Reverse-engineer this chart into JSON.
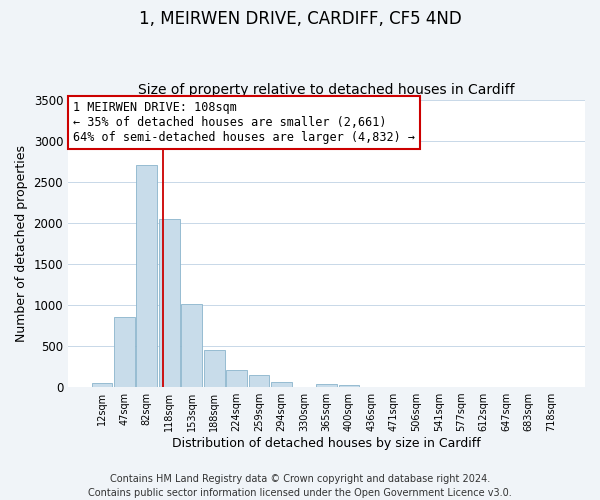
{
  "title": "1, MEIRWEN DRIVE, CARDIFF, CF5 4ND",
  "subtitle": "Size of property relative to detached houses in Cardiff",
  "xlabel": "Distribution of detached houses by size in Cardiff",
  "ylabel": "Number of detached properties",
  "bar_color": "#c8dcea",
  "bar_edge_color": "#8ab4cc",
  "bg_color": "#f0f4f8",
  "plot_bg_color": "#ffffff",
  "grid_color": "#c8d8e8",
  "bin_labels": [
    "12sqm",
    "47sqm",
    "82sqm",
    "118sqm",
    "153sqm",
    "188sqm",
    "224sqm",
    "259sqm",
    "294sqm",
    "330sqm",
    "365sqm",
    "400sqm",
    "436sqm",
    "471sqm",
    "506sqm",
    "541sqm",
    "577sqm",
    "612sqm",
    "647sqm",
    "683sqm",
    "718sqm"
  ],
  "bar_heights": [
    55,
    850,
    2700,
    2050,
    1010,
    455,
    210,
    145,
    60,
    0,
    35,
    20,
    0,
    0,
    0,
    0,
    0,
    0,
    0,
    0,
    0
  ],
  "ylim": [
    0,
    3500
  ],
  "yticks": [
    0,
    500,
    1000,
    1500,
    2000,
    2500,
    3000,
    3500
  ],
  "vline_x": 2.74,
  "vline_color": "#cc0000",
  "annotation_line1": "1 MEIRWEN DRIVE: 108sqm",
  "annotation_line2": "← 35% of detached houses are smaller (2,661)",
  "annotation_line3": "64% of semi-detached houses are larger (4,832) →",
  "annotation_box_color": "#ffffff",
  "annotation_box_edge": "#cc0000",
  "footer_line1": "Contains HM Land Registry data © Crown copyright and database right 2024.",
  "footer_line2": "Contains public sector information licensed under the Open Government Licence v3.0.",
  "title_fontsize": 12,
  "subtitle_fontsize": 10,
  "annotation_fontsize": 8.5,
  "footer_fontsize": 7
}
